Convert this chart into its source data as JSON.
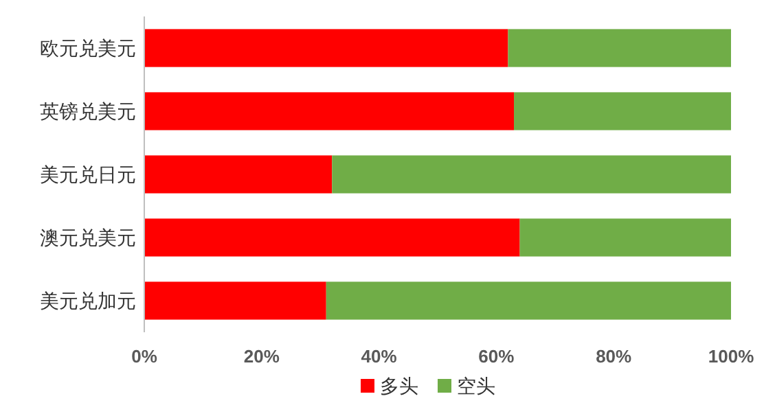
{
  "chart_data": {
    "type": "bar",
    "orientation": "horizontal",
    "stacked": true,
    "categories": [
      "欧元兑美元",
      "英镑兑美元",
      "美元兑日元",
      "澳元兑美元",
      "美元兑加元"
    ],
    "series": [
      {
        "name": "多头",
        "color": "#ff0000",
        "values": [
          62,
          63,
          32,
          64,
          31
        ]
      },
      {
        "name": "空头",
        "color": "#70ad47",
        "values": [
          38,
          37,
          68,
          36,
          69
        ]
      }
    ],
    "xlim": [
      0,
      100
    ],
    "xticks": [
      {
        "value": 0,
        "label": "0%"
      },
      {
        "value": 20,
        "label": "20%"
      },
      {
        "value": 40,
        "label": "40%"
      },
      {
        "value": 60,
        "label": "60%"
      },
      {
        "value": 80,
        "label": "80%"
      },
      {
        "value": 100,
        "label": "100%"
      }
    ],
    "legend": "bottom",
    "grid": false
  }
}
